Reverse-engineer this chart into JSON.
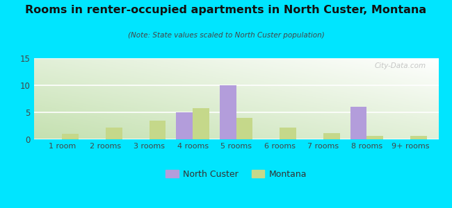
{
  "title": "Rooms in renter-occupied apartments in North Custer, Montana",
  "subtitle": "(Note: State values scaled to North Custer population)",
  "categories": [
    "1 room",
    "2 rooms",
    "3 rooms",
    "4 rooms",
    "5 rooms",
    "6 rooms",
    "7 rooms",
    "8 rooms",
    "9+ rooms"
  ],
  "north_custer": [
    0,
    0,
    0,
    5,
    10,
    0,
    0,
    6,
    0
  ],
  "montana": [
    1,
    2.2,
    3.4,
    5.8,
    4.0,
    2.2,
    1.1,
    0.7,
    0.7
  ],
  "nc_color": "#b39ddb",
  "mt_color": "#c5d88a",
  "background_outer": "#00e5ff",
  "ylim": [
    0,
    15
  ],
  "yticks": [
    0,
    5,
    10,
    15
  ],
  "bar_width": 0.38,
  "legend_nc": "North Custer",
  "legend_mt": "Montana"
}
